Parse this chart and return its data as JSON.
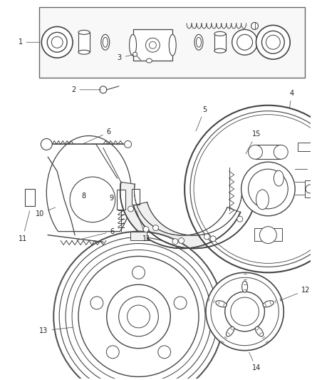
{
  "bg_color": "#ffffff",
  "line_color": "#444444",
  "text_color": "#222222",
  "fig_width": 4.38,
  "fig_height": 5.33,
  "dpi": 100
}
